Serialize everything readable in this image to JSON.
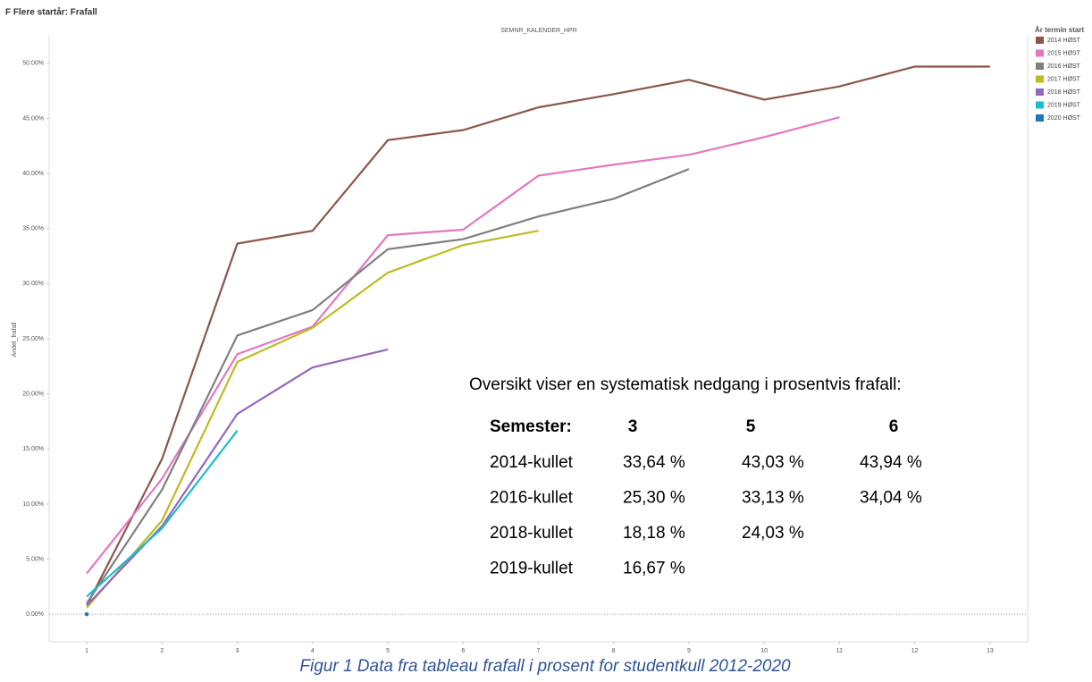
{
  "chart_data": {
    "type": "line",
    "title": "F Flere startår: Frafall",
    "column_header": "SEMNR_KALENDER_HPR",
    "y_label": "Andel_frafall",
    "legend_title": "År termin start",
    "x": [
      1,
      2,
      3,
      4,
      5,
      6,
      7,
      8,
      9,
      10,
      11,
      12,
      13
    ],
    "xlim": [
      0.5,
      13.5
    ],
    "xticks": [
      1,
      2,
      3,
      4,
      5,
      6,
      7,
      8,
      9,
      10,
      11,
      12,
      13
    ],
    "ylim": [
      -2.5,
      52.5
    ],
    "yticks": [
      {
        "value": 0,
        "label": "0.00%"
      },
      {
        "value": 5,
        "label": "5.00%"
      },
      {
        "value": 10,
        "label": "10.00%"
      },
      {
        "value": 15,
        "label": "15.00%"
      },
      {
        "value": 20,
        "label": "20.00%"
      },
      {
        "value": 25,
        "label": "25.00%"
      },
      {
        "value": 30,
        "label": "30.00%"
      },
      {
        "value": 35,
        "label": "35.00%"
      },
      {
        "value": 40,
        "label": "40.00%"
      },
      {
        "value": 45,
        "label": "45.00%"
      },
      {
        "value": 50,
        "label": "50.00%"
      }
    ],
    "grid": false,
    "legend": "right",
    "series": [
      {
        "name": "2014 HØST",
        "color": "#8c564b",
        "values": [
          0.8,
          14.1,
          33.64,
          34.8,
          43.03,
          43.94,
          46.0,
          47.2,
          48.5,
          46.7,
          47.9,
          49.7,
          49.7
        ]
      },
      {
        "name": "2015 HØST",
        "color": "#e377c2",
        "values": [
          3.7,
          12.3,
          23.6,
          26.1,
          34.4,
          34.9,
          39.8,
          40.8,
          41.7,
          43.3,
          45.1,
          null,
          null
        ]
      },
      {
        "name": "2016 HØST",
        "color": "#7f7f7f",
        "values": [
          1.0,
          11.3,
          25.3,
          27.6,
          33.13,
          34.04,
          36.1,
          37.7,
          40.4,
          null,
          null,
          null,
          null
        ]
      },
      {
        "name": "2017 HØST",
        "color": "#bcbd22",
        "values": [
          0.6,
          8.5,
          22.9,
          26.0,
          31.0,
          33.5,
          34.8,
          null,
          null,
          null,
          null,
          null,
          null
        ]
      },
      {
        "name": "2018 HØST",
        "color": "#9467bd",
        "values": [
          0.8,
          8.0,
          18.18,
          22.4,
          24.03,
          null,
          null,
          null,
          null,
          null,
          null,
          null,
          null
        ]
      },
      {
        "name": "2019 HØST",
        "color": "#17becf",
        "values": [
          1.6,
          7.8,
          16.67,
          null,
          null,
          null,
          null,
          null,
          null,
          null,
          null,
          null,
          null
        ]
      },
      {
        "name": "2020 HØST",
        "color": "#1f77b4",
        "values": [
          0,
          null,
          null,
          null,
          null,
          null,
          null,
          null,
          null,
          null,
          null,
          null,
          null
        ]
      }
    ],
    "annotation": {
      "heading": "Oversikt viser en systematisk nedgang i prosentvis frafall:",
      "header": [
        "Semester:",
        "3",
        "5",
        "6"
      ],
      "rows": [
        [
          "2014-kullet",
          "33,64 %",
          "43,03 %",
          "43,94 %"
        ],
        [
          "2016-kullet",
          "25,30 %",
          "33,13 %",
          "34,04 %"
        ],
        [
          "2018-kullet",
          "18,18 %",
          "24,03 %"
        ],
        [
          "2019-kullet",
          "16,67 %"
        ]
      ]
    },
    "caption": "Figur 1 Data fra tableau frafall i prosent for studentkull 2012-2020"
  }
}
